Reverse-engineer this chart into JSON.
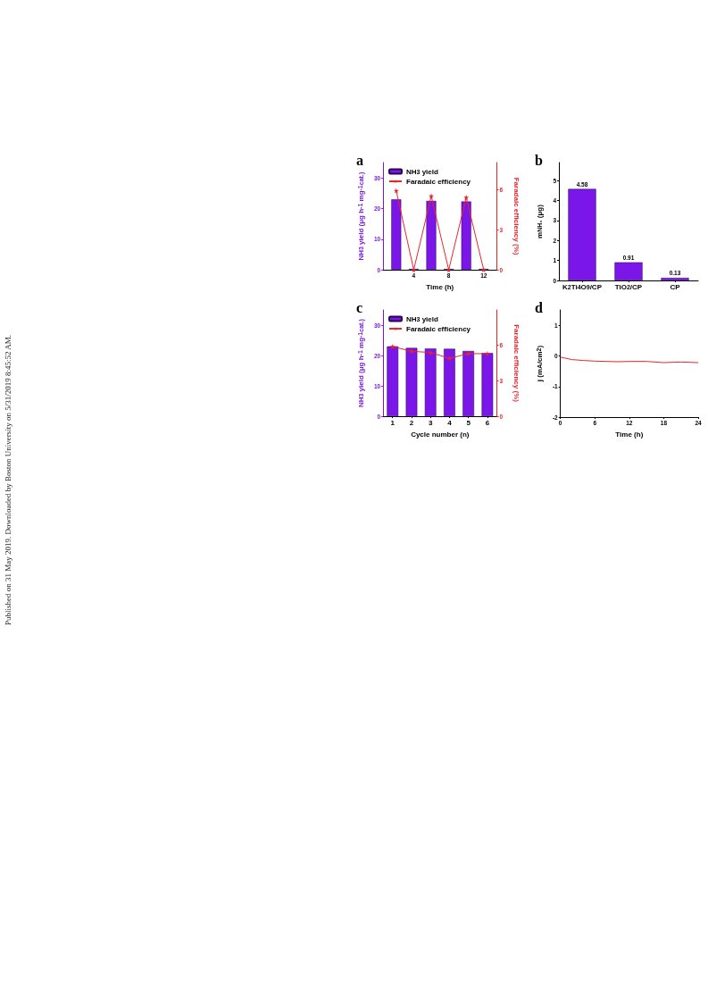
{
  "chart_data": [
    {
      "type": "bar",
      "title": "a",
      "xlabel": "Time (h)",
      "ylabel": "NH$_{3}$ yield (μg h$^{-1}$ mg$^{-1}$$_{cat.}$)",
      "y2label": "Faradaic efficiency (%)",
      "x": [
        2,
        4,
        6,
        8,
        10,
        12
      ],
      "xlim": [
        0.5,
        13.5
      ],
      "xticks": [
        4,
        8,
        12
      ],
      "ylim": [
        0,
        35
      ],
      "yticks": [
        0,
        10,
        20,
        30
      ],
      "y2lim": [
        0,
        8
      ],
      "y2ticks": [
        0,
        3,
        6
      ],
      "series": [
        {
          "name": "NH$_{3}$ yield",
          "type": "bar",
          "color": "#7b16e8",
          "values": [
            23,
            0.3,
            22.5,
            0.3,
            22.3,
            0.3
          ]
        },
        {
          "name": "Faradaic efficiency",
          "type": "line",
          "axis": "y2",
          "marker": "star",
          "color": "#e8262a",
          "values": [
            5.9,
            0,
            5.5,
            0,
            5.4,
            0
          ]
        }
      ],
      "legend": "top left",
      "grid": false,
      "annotations": [
        "Published on 31 May 2019. Downloaded by Boston University on 5/31/2019 8:45:52 AM."
      ]
    },
    {
      "type": "bar",
      "title": "b",
      "ylabel": "m$_{NH₃}$ (μg)",
      "categories": [
        "K$_{2}$Ti$_{4}$O$_{9}$/CP",
        "TiO$_{2}$/CP",
        "CP"
      ],
      "ylim": [
        0,
        5.9
      ],
      "yticks": [
        0,
        1,
        2,
        3,
        4,
        5
      ],
      "series": [
        {
          "color": "#7b16e8",
          "values": [
            4.58,
            0.91,
            0.13
          ]
        }
      ],
      "data_labels": true,
      "grid": false
    },
    {
      "type": "bar",
      "title": "c",
      "xlabel": "Cycle number (n)",
      "ylabel": "NH$_{3}$ yield (μg h$^{-1}$ mg$^{-1}$$_{cat.}$)",
      "y2label": "Faradaic efficiency (%)",
      "categories": [
        "1",
        "2",
        "3",
        "4",
        "5",
        "6"
      ],
      "ylim": [
        0,
        35
      ],
      "yticks": [
        0,
        10,
        20,
        30
      ],
      "y2lim": [
        0,
        9
      ],
      "y2ticks": [
        0,
        3,
        6
      ],
      "series": [
        {
          "name": "NH$_{3}$ yield",
          "type": "bar",
          "color": "#7b16e8",
          "values": [
            23,
            22.5,
            22.3,
            22.2,
            21.5,
            20.8
          ]
        },
        {
          "name": "Faradaic efficiency",
          "type": "line",
          "axis": "y2",
          "marker": "star",
          "color": "#e8262a",
          "values": [
            5.9,
            5.5,
            5.4,
            4.9,
            5.3,
            5.3
          ]
        }
      ],
      "legend": "top left",
      "grid": false
    },
    {
      "type": "line",
      "title": "d",
      "xlabel": "Time (h)",
      "ylabel": "j (mA/cm$^{2}$)",
      "xlim": [
        0,
        24
      ],
      "xticks": [
        0,
        6,
        12,
        18,
        24
      ],
      "ylim": [
        -2,
        1.5
      ],
      "yticks": [
        -2,
        -1,
        0,
        1
      ],
      "series": [
        {
          "color": "#e8262a",
          "marker": "none",
          "x": [
            0,
            1,
            2,
            4,
            6,
            8,
            10,
            12,
            15,
            18,
            21,
            24
          ],
          "values": [
            -0.04,
            -0.08,
            -0.12,
            -0.15,
            -0.17,
            -0.18,
            -0.19,
            -0.18,
            -0.18,
            -0.22,
            -0.2,
            -0.22
          ]
        }
      ],
      "grid": false
    }
  ]
}
